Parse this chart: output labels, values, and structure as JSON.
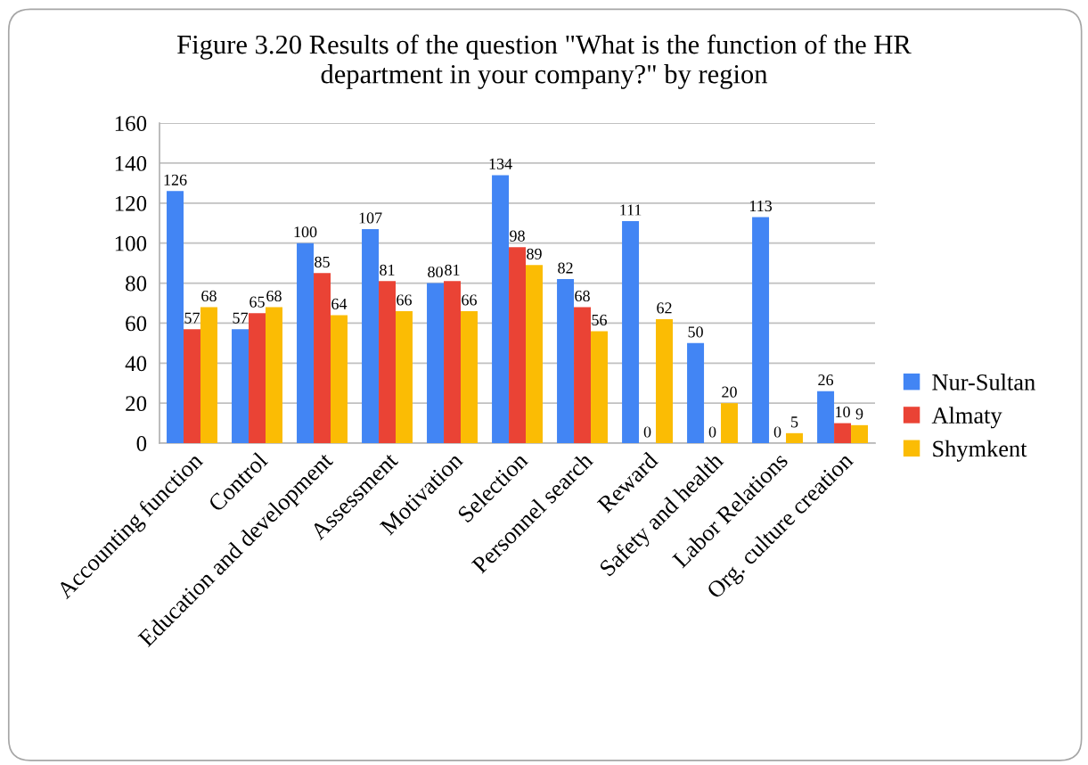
{
  "chart_data": {
    "type": "bar",
    "title": "Figure 3.20 Results of the question \"What is the function of the HR\ndepartment in your company?\" by region",
    "categories": [
      "Accounting function",
      "Control",
      "Education and development",
      "Assessment",
      "Motivation",
      "Selection",
      "Personnel search",
      "Reward",
      "Safety and health",
      "Labor Relations",
      "Org. culture creation"
    ],
    "series": [
      {
        "name": "Nur-Sultan",
        "color": "#4285f4",
        "values": [
          126,
          57,
          100,
          107,
          80,
          134,
          82,
          111,
          50,
          113,
          26
        ]
      },
      {
        "name": "Almaty",
        "color": "#ea4335",
        "values": [
          57,
          65,
          85,
          81,
          81,
          98,
          68,
          0,
          0,
          0,
          10
        ]
      },
      {
        "name": "Shymkent",
        "color": "#fbbc04",
        "values": [
          68,
          68,
          64,
          66,
          66,
          89,
          56,
          62,
          20,
          5,
          9
        ]
      }
    ],
    "ylim": [
      0,
      160
    ],
    "yticks": [
      0,
      20,
      40,
      60,
      80,
      100,
      120,
      140,
      160
    ],
    "grid": "y",
    "legend": "right",
    "data_labels": true
  }
}
